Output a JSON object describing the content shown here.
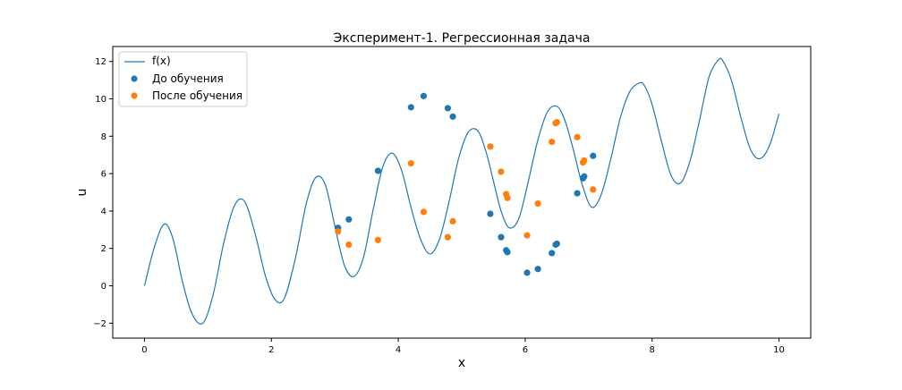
{
  "chart_data": {
    "type": "scatter",
    "title": "Эксперимент-1. Регрессионная задача",
    "xlabel": "x",
    "ylabel": "u",
    "xlim": [
      -0.5,
      10.5
    ],
    "ylim": [
      -2.8,
      12.8
    ],
    "xticks": [
      0,
      2,
      4,
      6,
      8,
      10
    ],
    "xtick_labels": [
      "0",
      "2",
      "4",
      "6",
      "8",
      "10"
    ],
    "yticks": [
      -2,
      0,
      2,
      4,
      6,
      8,
      10,
      12
    ],
    "ytick_labels": [
      "−2",
      "0",
      "2",
      "4",
      "6",
      "8",
      "10",
      "12"
    ],
    "grid": false,
    "legend_position": "top-left",
    "series": [
      {
        "name": "f(x)",
        "kind": "line",
        "color": "#1f77b4",
        "x": [
          0,
          0.15,
          0.31,
          0.45,
          0.6,
          0.75,
          0.92,
          1.08,
          1.25,
          1.42,
          1.58,
          1.75,
          1.9,
          2.05,
          2.2,
          2.38,
          2.55,
          2.7,
          2.85,
          3.0,
          3.15,
          3.3,
          3.45,
          3.6,
          3.75,
          3.9,
          4.05,
          4.2,
          4.35,
          4.5,
          4.65,
          4.8,
          4.95,
          5.1,
          5.25,
          5.38,
          5.5,
          5.62,
          5.75,
          5.9,
          6.05,
          6.2,
          6.35,
          6.5,
          6.62,
          6.75,
          6.9,
          7.05,
          7.2,
          7.35,
          7.5,
          7.65,
          7.8,
          7.88,
          8.0,
          8.15,
          8.3,
          8.45,
          8.6,
          8.75,
          8.9,
          9.05,
          9.12,
          9.25,
          9.4,
          9.55,
          9.7,
          9.85,
          10.0
        ],
        "y": [
          0.0,
          2.0,
          3.3,
          2.5,
          0.2,
          -1.5,
          -2.0,
          -0.5,
          2.3,
          4.3,
          4.5,
          2.7,
          0.6,
          -0.7,
          -0.7,
          1.5,
          4.4,
          5.8,
          5.4,
          3.2,
          1.1,
          0.5,
          1.5,
          4.0,
          6.3,
          7.1,
          6.2,
          4.2,
          2.5,
          1.7,
          2.5,
          4.5,
          6.8,
          8.2,
          8.3,
          7.2,
          5.6,
          4.0,
          3.1,
          3.6,
          5.6,
          7.8,
          9.3,
          9.6,
          8.9,
          7.4,
          5.4,
          4.2,
          4.9,
          6.8,
          9.0,
          10.4,
          10.85,
          10.7,
          9.7,
          7.7,
          5.9,
          5.5,
          6.7,
          8.9,
          11.2,
          12.1,
          12.0,
          11.0,
          9.0,
          7.3,
          6.8,
          7.5,
          9.2
        ]
      },
      {
        "name": "До обучения",
        "kind": "scatter",
        "color": "#1f77b4",
        "x": [
          3.05,
          3.22,
          3.68,
          4.2,
          4.4,
          4.78,
          4.86,
          5.45,
          5.62,
          5.7,
          5.72,
          6.03,
          6.2,
          6.42,
          6.48,
          6.5,
          6.82,
          6.91,
          6.93,
          7.07
        ],
        "y": [
          3.1,
          3.55,
          6.15,
          9.55,
          10.15,
          9.5,
          9.05,
          3.85,
          2.6,
          1.9,
          1.8,
          0.7,
          0.9,
          1.75,
          2.2,
          2.25,
          4.95,
          5.75,
          5.85,
          6.95
        ]
      },
      {
        "name": "После обучения",
        "kind": "scatter",
        "color": "#ff7f0e",
        "x": [
          3.05,
          3.22,
          3.68,
          4.2,
          4.4,
          4.78,
          4.86,
          5.45,
          5.62,
          5.7,
          5.72,
          6.03,
          6.2,
          6.42,
          6.48,
          6.5,
          6.82,
          6.91,
          6.93,
          7.07
        ],
        "y": [
          2.9,
          2.2,
          2.45,
          6.55,
          3.95,
          2.6,
          3.45,
          7.45,
          6.1,
          4.9,
          4.7,
          2.7,
          4.4,
          7.7,
          8.7,
          8.75,
          7.95,
          6.6,
          6.7,
          5.15
        ]
      }
    ]
  }
}
